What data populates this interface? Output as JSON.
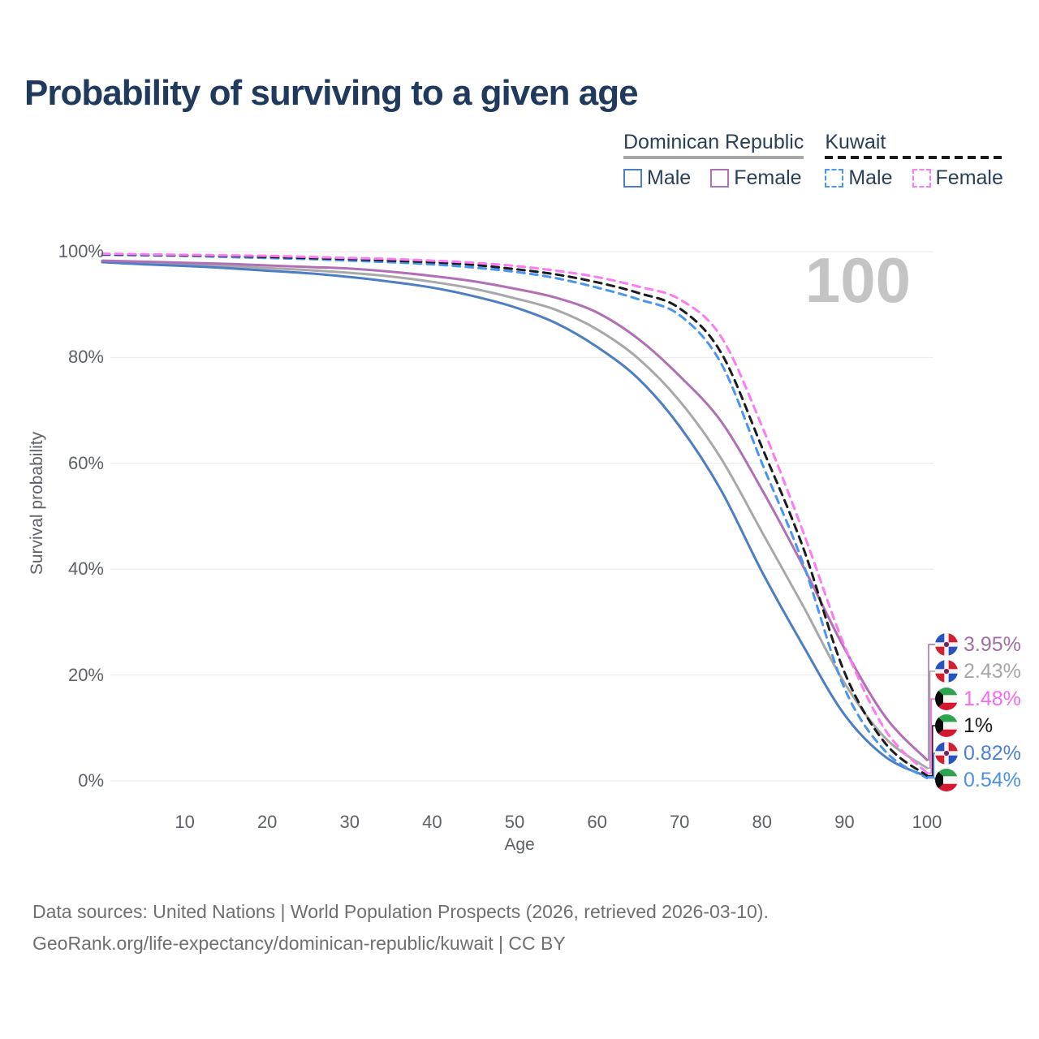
{
  "title": "Probability of surviving to a given age",
  "watermark": "100",
  "legend": {
    "groups": [
      {
        "label": "Dominican Republic",
        "line_style": "solid",
        "line_color": "#a8a8a8",
        "items": [
          {
            "label": "Male",
            "color": "#4d7ec3"
          },
          {
            "label": "Female",
            "color": "#b16fb5"
          }
        ]
      },
      {
        "label": "Kuwait",
        "line_style": "dashed",
        "line_color": "#1c1c1c",
        "items": [
          {
            "label": "Male",
            "color": "#4a95ee"
          },
          {
            "label": "Female",
            "color": "#fb7bf3"
          }
        ]
      }
    ]
  },
  "y_axis": {
    "title": "Survival probability",
    "ticks": [
      {
        "label": "100%",
        "value": 100
      },
      {
        "label": "80%",
        "value": 80
      },
      {
        "label": "60%",
        "value": 60
      },
      {
        "label": "40%",
        "value": 40
      },
      {
        "label": "20%",
        "value": 20
      },
      {
        "label": "0%",
        "value": 0
      }
    ]
  },
  "x_axis": {
    "title": "Age",
    "ticks": [
      {
        "label": "10",
        "value": 10
      },
      {
        "label": "20",
        "value": 20
      },
      {
        "label": "30",
        "value": 30
      },
      {
        "label": "40",
        "value": 40
      },
      {
        "label": "50",
        "value": 50
      },
      {
        "label": "60",
        "value": 60
      },
      {
        "label": "70",
        "value": 70
      },
      {
        "label": "80",
        "value": 80
      },
      {
        "label": "90",
        "value": 90
      },
      {
        "label": "100",
        "value": 100
      }
    ]
  },
  "end_labels": [
    {
      "text": "3.95%",
      "value": 3.95,
      "flag": "dominican-republic",
      "color": "#a06fa6",
      "series": "Dominican Republic Female"
    },
    {
      "text": "2.43%",
      "value": 2.43,
      "flag": "dominican-republic",
      "color": "#a6a6a6",
      "series": "Dominican Republic Both sexes"
    },
    {
      "text": "1.48%",
      "value": 1.48,
      "flag": "kuwait",
      "color": "#fb66f0",
      "series": "Kuwait Female"
    },
    {
      "text": "1%",
      "value": 1.0,
      "flag": "kuwait",
      "color": "#1a1a1a",
      "series": "Kuwait Both sexes"
    },
    {
      "text": "0.82%",
      "value": 0.82,
      "flag": "dominican-republic",
      "color": "#4a80d8",
      "series": "Dominican Republic Male"
    },
    {
      "text": "0.54%",
      "value": 0.54,
      "flag": "kuwait",
      "color": "#4a90e8",
      "series": "Kuwait Male"
    }
  ],
  "footer": {
    "line1": "Data sources: United Nations | World Population Prospects (2026, retrieved 2026-03-10).",
    "line2": "GeoRank.org/life-expectancy/dominican-republic/kuwait | CC BY"
  },
  "chart_data": {
    "type": "line",
    "title": "Probability of surviving to a given age",
    "xlabel": "Age",
    "ylabel": "Survival probability",
    "xlim": [
      0,
      100
    ],
    "ylim": [
      0,
      100
    ],
    "grid": "horizontal",
    "legend_position": "top-right",
    "x": [
      0,
      5,
      10,
      15,
      20,
      25,
      30,
      35,
      40,
      45,
      50,
      55,
      60,
      65,
      70,
      75,
      80,
      85,
      90,
      95,
      100
    ],
    "series": [
      {
        "name": "Dominican Republic Both sexes",
        "country": "Dominican Republic",
        "sex": "both",
        "style": "solid",
        "color": "#a8a8a8",
        "end_value": 2.43,
        "values": [
          98.2,
          97.9,
          97.6,
          97.3,
          96.9,
          96.5,
          96.0,
          95.3,
          94.3,
          93.0,
          91.2,
          89.0,
          85.3,
          79.8,
          71.8,
          61.0,
          47.0,
          33.0,
          18.5,
          8.0,
          2.43
        ]
      },
      {
        "name": "Dominican Republic Male",
        "country": "Dominican Republic",
        "sex": "male",
        "style": "solid",
        "color": "#4d7ec3",
        "end_value": 0.82,
        "values": [
          98.0,
          97.6,
          97.3,
          96.9,
          96.4,
          95.9,
          95.2,
          94.3,
          93.2,
          91.6,
          89.5,
          86.5,
          82.0,
          76.0,
          67.0,
          55.0,
          39.5,
          25.5,
          12.5,
          4.5,
          0.82
        ]
      },
      {
        "name": "Dominican Republic Female",
        "country": "Dominican Republic",
        "sex": "female",
        "style": "solid",
        "color": "#b16fb5",
        "end_value": 3.95,
        "values": [
          98.3,
          98.1,
          97.9,
          97.7,
          97.4,
          97.1,
          96.8,
          96.2,
          95.4,
          94.4,
          93.0,
          91.3,
          88.5,
          83.5,
          76.5,
          68.0,
          55.0,
          40.5,
          25.0,
          12.0,
          3.95
        ]
      },
      {
        "name": "Kuwait Male",
        "country": "Kuwait",
        "sex": "male",
        "style": "dashed",
        "color": "#4a95ee",
        "end_value": 0.54,
        "values": [
          99.4,
          99.3,
          99.2,
          99.0,
          98.8,
          98.6,
          98.3,
          98.0,
          97.6,
          97.0,
          96.2,
          95.0,
          93.2,
          91.0,
          88.0,
          79.0,
          60.0,
          41.0,
          17.5,
          5.5,
          0.54
        ]
      },
      {
        "name": "Kuwait Both sexes",
        "country": "Kuwait",
        "sex": "both",
        "style": "dashed",
        "color": "#1c1c1c",
        "end_value": 1.0,
        "values": [
          99.5,
          99.4,
          99.3,
          99.2,
          99.0,
          98.8,
          98.6,
          98.3,
          98.0,
          97.5,
          96.7,
          95.7,
          94.2,
          92.2,
          89.3,
          81.0,
          63.0,
          44.0,
          20.5,
          7.0,
          1.0
        ]
      },
      {
        "name": "Kuwait Female",
        "country": "Kuwait",
        "sex": "female",
        "style": "dashed",
        "color": "#fb7bf3",
        "end_value": 1.48,
        "values": [
          99.6,
          99.5,
          99.4,
          99.3,
          99.2,
          99.0,
          98.8,
          98.6,
          98.3,
          97.9,
          97.3,
          96.4,
          95.2,
          93.4,
          91.0,
          84.0,
          67.0,
          47.0,
          25.5,
          9.5,
          1.48
        ]
      }
    ]
  }
}
